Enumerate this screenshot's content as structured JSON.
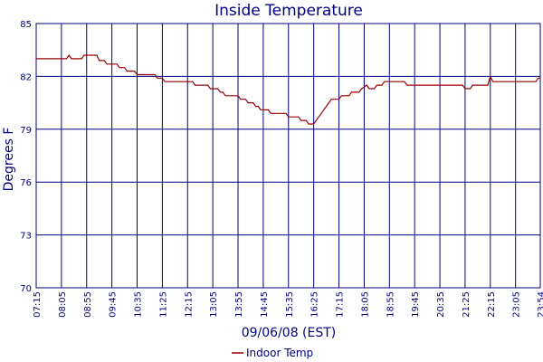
{
  "chart_data": {
    "type": "line",
    "title": "Inside Temperature",
    "xlabel": "09/06/08 (EST)",
    "ylabel": "Degrees F",
    "ylim": [
      70,
      85
    ],
    "yticks": [
      70,
      73,
      76,
      79,
      82,
      85
    ],
    "x_tick_labels": [
      "07:15",
      "08:05",
      "08:55",
      "09:45",
      "10:35",
      "11:25",
      "12:15",
      "13:05",
      "13:55",
      "14:45",
      "15:35",
      "16:25",
      "17:15",
      "18:05",
      "18:55",
      "19:45",
      "20:35",
      "21:25",
      "22:15",
      "23:05",
      "23:54"
    ],
    "grid": true,
    "legend_position": "bottom-center",
    "colors": {
      "series": "#990000",
      "grid": "#000080",
      "text": "#000080"
    },
    "series": [
      {
        "name": "Indoor Temp",
        "points": [
          [
            "07:15",
            83.0
          ],
          [
            "08:15",
            83.0
          ],
          [
            "08:20",
            83.2
          ],
          [
            "08:25",
            83.0
          ],
          [
            "08:45",
            83.0
          ],
          [
            "08:50",
            83.2
          ],
          [
            "09:15",
            83.2
          ],
          [
            "09:20",
            82.9
          ],
          [
            "09:30",
            82.9
          ],
          [
            "09:35",
            82.7
          ],
          [
            "09:55",
            82.7
          ],
          [
            "10:00",
            82.5
          ],
          [
            "10:10",
            82.5
          ],
          [
            "10:15",
            82.3
          ],
          [
            "10:30",
            82.3
          ],
          [
            "10:35",
            82.1
          ],
          [
            "11:10",
            82.1
          ],
          [
            "11:15",
            81.9
          ],
          [
            "11:25",
            81.9
          ],
          [
            "11:30",
            81.7
          ],
          [
            "12:25",
            81.7
          ],
          [
            "12:30",
            81.5
          ],
          [
            "12:55",
            81.5
          ],
          [
            "13:00",
            81.3
          ],
          [
            "13:15",
            81.3
          ],
          [
            "13:20",
            81.1
          ],
          [
            "13:25",
            81.1
          ],
          [
            "13:30",
            80.9
          ],
          [
            "13:55",
            80.9
          ],
          [
            "14:00",
            80.7
          ],
          [
            "14:10",
            80.7
          ],
          [
            "14:15",
            80.5
          ],
          [
            "14:25",
            80.5
          ],
          [
            "14:30",
            80.3
          ],
          [
            "14:35",
            80.3
          ],
          [
            "14:40",
            80.1
          ],
          [
            "14:55",
            80.1
          ],
          [
            "15:00",
            79.9
          ],
          [
            "15:30",
            79.9
          ],
          [
            "15:35",
            79.7
          ],
          [
            "15:55",
            79.7
          ],
          [
            "16:00",
            79.5
          ],
          [
            "16:10",
            79.5
          ],
          [
            "16:15",
            79.3
          ],
          [
            "16:25",
            79.3
          ],
          [
            "16:30",
            79.5
          ],
          [
            "16:35",
            79.7
          ],
          [
            "16:40",
            79.9
          ],
          [
            "16:45",
            80.1
          ],
          [
            "16:50",
            80.3
          ],
          [
            "16:55",
            80.5
          ],
          [
            "17:00",
            80.7
          ],
          [
            "17:15",
            80.7
          ],
          [
            "17:20",
            80.9
          ],
          [
            "17:35",
            80.9
          ],
          [
            "17:40",
            81.1
          ],
          [
            "17:55",
            81.1
          ],
          [
            "18:00",
            81.3
          ],
          [
            "18:10",
            81.5
          ],
          [
            "18:15",
            81.3
          ],
          [
            "18:25",
            81.3
          ],
          [
            "18:30",
            81.5
          ],
          [
            "18:40",
            81.5
          ],
          [
            "18:45",
            81.7
          ],
          [
            "19:25",
            81.7
          ],
          [
            "19:30",
            81.5
          ],
          [
            "21:20",
            81.5
          ],
          [
            "21:25",
            81.3
          ],
          [
            "21:35",
            81.3
          ],
          [
            "21:40",
            81.5
          ],
          [
            "22:10",
            81.5
          ],
          [
            "22:15",
            82.0
          ],
          [
            "22:20",
            81.7
          ],
          [
            "23:45",
            81.7
          ],
          [
            "23:50",
            81.9
          ],
          [
            "23:54",
            81.9
          ]
        ]
      }
    ]
  }
}
